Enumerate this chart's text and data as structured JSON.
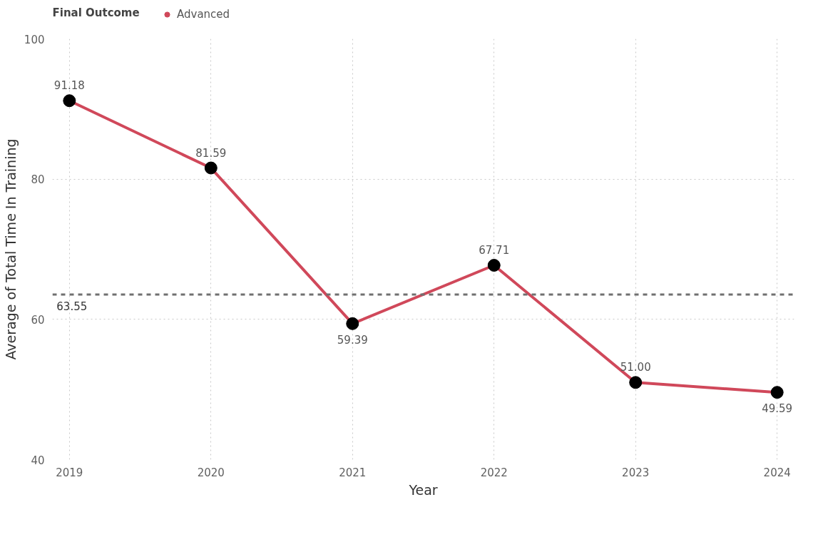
{
  "chart_data": {
    "type": "line",
    "legend_title": "Final Outcome",
    "xlabel": "Year",
    "ylabel": "Average of Total Time In Training",
    "categories": [
      "2019",
      "2020",
      "2021",
      "2022",
      "2023",
      "2024"
    ],
    "series": [
      {
        "name": "Advanced",
        "color": "#d0485a",
        "values": [
          91.18,
          81.59,
          59.39,
          67.71,
          51.0,
          49.59
        ],
        "value_labels": [
          "91.18",
          "81.59",
          "59.39",
          "67.71",
          "51.00",
          "49.59"
        ]
      }
    ],
    "ylim": [
      40,
      100
    ],
    "yticks": [
      40,
      60,
      80,
      100
    ],
    "ref_lines": [
      {
        "axis": "y",
        "value": 63.55,
        "label": "63.55",
        "color": "#707070",
        "line_style": "dashed"
      }
    ],
    "grid": true,
    "legend": "top left",
    "marker": "circle",
    "line_style": "solid"
  }
}
